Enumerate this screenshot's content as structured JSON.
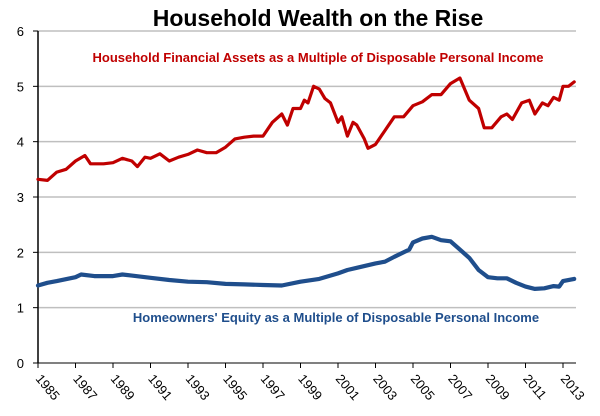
{
  "chart_data": {
    "type": "line",
    "title": "Household Wealth on the Rise",
    "xlabel": "",
    "ylabel": "",
    "xlim": [
      1985,
      2013.7
    ],
    "ylim": [
      0,
      6
    ],
    "grid": true,
    "x_ticks": [
      "1985",
      "1987",
      "1989",
      "1991",
      "1993",
      "1995",
      "1997",
      "1999",
      "2001",
      "2003",
      "2005",
      "2007",
      "2009",
      "2011",
      "2013"
    ],
    "y_ticks": [
      "0",
      "1",
      "2",
      "3",
      "4",
      "5",
      "6"
    ],
    "series": [
      {
        "name": "Household Financial Assets as a Multiple of Disposable Personal Income",
        "color": "#C00000",
        "x": [
          1985,
          1985.5,
          1986,
          1986.5,
          1987,
          1987.5,
          1987.8,
          1988,
          1988.5,
          1989,
          1989.5,
          1990,
          1990.3,
          1990.7,
          1991,
          1991.5,
          1992,
          1992.5,
          1993,
          1993.5,
          1994,
          1994.5,
          1995,
          1995.5,
          1996,
          1996.5,
          1997,
          1997.5,
          1998,
          1998.3,
          1998.6,
          1999,
          1999.2,
          1999.4,
          1999.7,
          2000,
          2000.3,
          2000.6,
          2001,
          2001.2,
          2001.5,
          2001.8,
          2002,
          2002.4,
          2002.6,
          2003,
          2003.5,
          2004,
          2004.5,
          2005,
          2005.5,
          2006,
          2006.5,
          2007,
          2007.5,
          2008,
          2008.5,
          2008.8,
          2009.2,
          2009.7,
          2010,
          2010.3,
          2010.8,
          2011.2,
          2011.5,
          2011.9,
          2012.2,
          2012.5,
          2012.8,
          2013,
          2013.3,
          2013.6
        ],
        "values": [
          3.32,
          3.3,
          3.45,
          3.5,
          3.65,
          3.75,
          3.6,
          3.6,
          3.6,
          3.62,
          3.7,
          3.65,
          3.55,
          3.72,
          3.7,
          3.78,
          3.65,
          3.72,
          3.77,
          3.85,
          3.8,
          3.8,
          3.9,
          4.05,
          4.08,
          4.1,
          4.1,
          4.35,
          4.5,
          4.3,
          4.6,
          4.6,
          4.75,
          4.7,
          5.0,
          4.95,
          4.78,
          4.7,
          4.35,
          4.45,
          4.1,
          4.35,
          4.3,
          4.05,
          3.88,
          3.95,
          4.2,
          4.45,
          4.45,
          4.65,
          4.72,
          4.85,
          4.85,
          5.05,
          5.15,
          4.75,
          4.6,
          4.25,
          4.25,
          4.45,
          4.5,
          4.4,
          4.7,
          4.75,
          4.5,
          4.7,
          4.65,
          4.8,
          4.75,
          5.0,
          5.0,
          5.08
        ]
      },
      {
        "name": "Homeowners' Equity as a Multiple of Disposable Personal Income",
        "color": "#1F4E8C",
        "x": [
          1985,
          1985.5,
          1986,
          1987,
          1987.3,
          1988,
          1989,
          1989.5,
          1990,
          1991,
          1992,
          1993,
          1994,
          1995,
          1996,
          1997,
          1998,
          1999,
          2000,
          2001,
          2001.5,
          2002,
          2003,
          2003.5,
          2004,
          2004.8,
          2005,
          2005.5,
          2006,
          2006.5,
          2007,
          2007.5,
          2008,
          2008.5,
          2009,
          2009.5,
          2010,
          2010.5,
          2011,
          2011.5,
          2012,
          2012.5,
          2012.8,
          2013,
          2013.6
        ],
        "values": [
          1.4,
          1.45,
          1.48,
          1.55,
          1.6,
          1.57,
          1.57,
          1.6,
          1.58,
          1.54,
          1.5,
          1.47,
          1.46,
          1.43,
          1.42,
          1.41,
          1.4,
          1.47,
          1.52,
          1.62,
          1.68,
          1.72,
          1.8,
          1.83,
          1.92,
          2.05,
          2.18,
          2.25,
          2.28,
          2.22,
          2.2,
          2.05,
          1.9,
          1.68,
          1.55,
          1.53,
          1.53,
          1.45,
          1.38,
          1.34,
          1.35,
          1.39,
          1.38,
          1.48,
          1.52
        ]
      }
    ],
    "annotations": [
      "Household Financial Assets as a Multiple of Disposable Personal Income",
      "Homeowners' Equity as a Multiple of Disposable Personal Income"
    ]
  }
}
